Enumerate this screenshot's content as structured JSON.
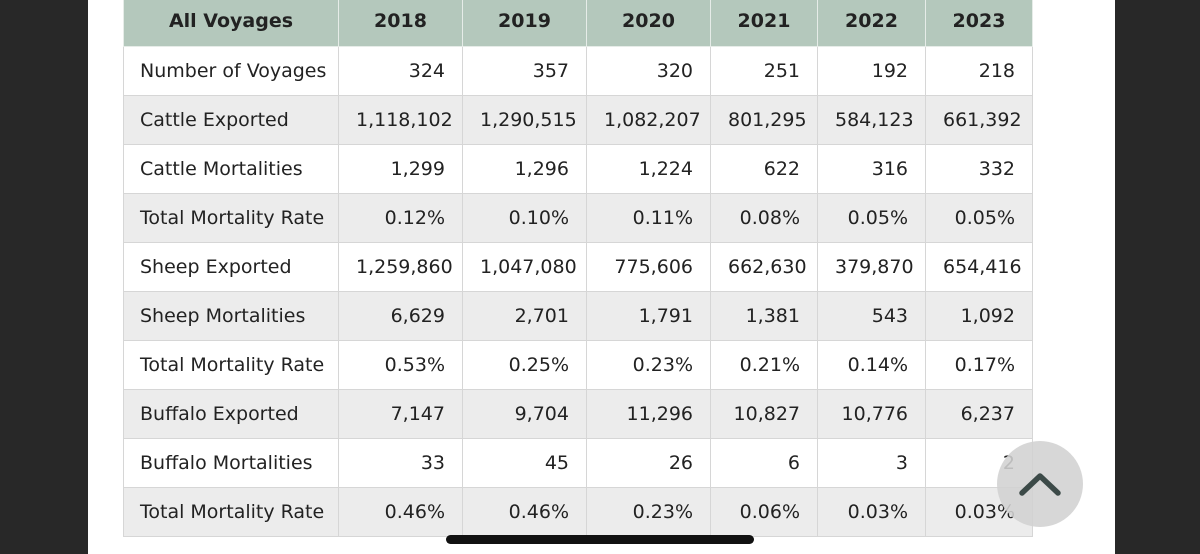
{
  "table": {
    "headers": [
      "All Voyages",
      "2018",
      "2019",
      "2020",
      "2021",
      "2022",
      "2023"
    ],
    "rows": [
      {
        "label": "Number of Voyages",
        "values": [
          "324",
          "357",
          "320",
          "251",
          "192",
          "218"
        ]
      },
      {
        "label": "Cattle Exported",
        "values": [
          "1,118,102",
          "1,290,515",
          "1,082,207",
          "801,295",
          "584,123",
          "661,392"
        ]
      },
      {
        "label": "Cattle Mortalities",
        "values": [
          "1,299",
          "1,296",
          "1,224",
          "622",
          "316",
          "332"
        ]
      },
      {
        "label": "Total Mortality Rate",
        "values": [
          "0.12%",
          "0.10%",
          "0.11%",
          "0.08%",
          "0.05%",
          "0.05%"
        ]
      },
      {
        "label": "Sheep Exported",
        "values": [
          "1,259,860",
          "1,047,080",
          "775,606",
          "662,630",
          "379,870",
          "654,416"
        ]
      },
      {
        "label": "Sheep Mortalities",
        "values": [
          "6,629",
          "2,701",
          "1,791",
          "1,381",
          "543",
          "1,092"
        ]
      },
      {
        "label": "Total Mortality Rate",
        "values": [
          "0.53%",
          "0.25%",
          "0.23%",
          "0.21%",
          "0.14%",
          "0.17%"
        ]
      },
      {
        "label": "Buffalo Exported",
        "values": [
          "7,147",
          "9,704",
          "11,296",
          "10,827",
          "10,776",
          "6,237"
        ]
      },
      {
        "label": "Buffalo Mortalities",
        "values": [
          "33",
          "45",
          "26",
          "6",
          "3",
          "2"
        ]
      },
      {
        "label": "Total Mortality Rate",
        "values": [
          "0.46%",
          "0.46%",
          "0.23%",
          "0.06%",
          "0.03%",
          "0.03%"
        ]
      }
    ]
  },
  "scroll_top_button": {
    "icon": "chevron-up-icon"
  },
  "colors": {
    "header_bg": "#b4c8bc",
    "stripe_bg": "#ececec"
  }
}
